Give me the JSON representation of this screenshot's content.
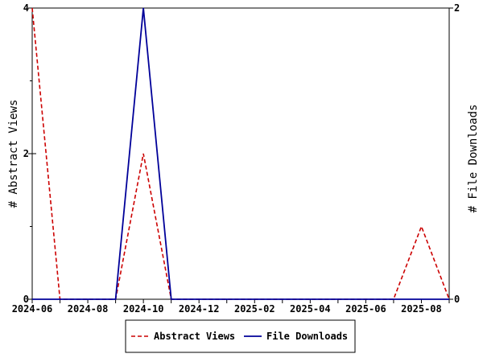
{
  "chart_data": {
    "type": "line",
    "x": [
      "2024-06",
      "2024-07",
      "2024-08",
      "2024-09",
      "2024-10",
      "2024-11",
      "2024-12",
      "2025-01",
      "2025-02",
      "2025-03",
      "2025-04",
      "2025-05",
      "2025-06",
      "2025-07",
      "2025-08",
      "2025-09"
    ],
    "x_tick_labels": [
      "2024-06",
      "2024-08",
      "2024-10",
      "2024-12",
      "2025-02",
      "2025-04",
      "2025-06",
      "2025-08"
    ],
    "series": [
      {
        "name": "Abstract Views",
        "axis": "left",
        "color": "#cc0000",
        "style": "dashed",
        "values": [
          4,
          0,
          0,
          0,
          2,
          0,
          0,
          0,
          0,
          0,
          0,
          0,
          0,
          0,
          1,
          0
        ]
      },
      {
        "name": "File Downloads",
        "axis": "right",
        "color": "#000099",
        "style": "solid",
        "values": [
          0,
          0,
          0,
          0,
          2,
          0,
          0,
          0,
          0,
          0,
          0,
          0,
          0,
          0,
          0,
          0
        ]
      }
    ],
    "ylabel": "# Abstract Views",
    "y2label": "# File Downloads",
    "ylim": [
      0,
      4
    ],
    "y2lim": [
      0,
      2
    ],
    "y_tick_labels": [
      "0",
      "2",
      "4"
    ],
    "y2_tick_labels": [
      "0",
      "2"
    ],
    "legend": {
      "placement": "bottom"
    }
  }
}
